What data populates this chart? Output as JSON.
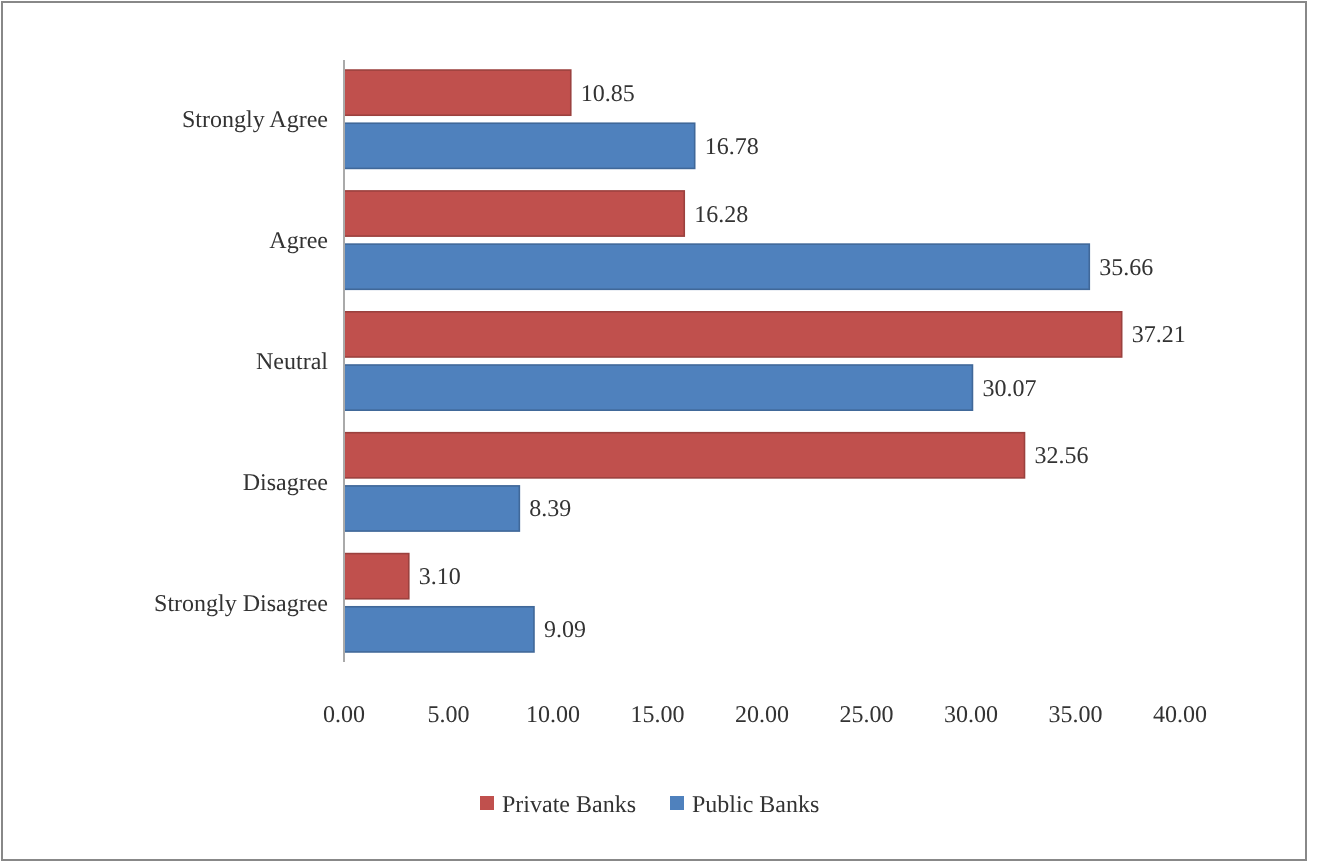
{
  "chart_data": {
    "type": "bar",
    "orientation": "horizontal",
    "categories": [
      "Strongly Agree",
      "Agree",
      "Neutral",
      "Disagree",
      "Strongly Disagree"
    ],
    "series": [
      {
        "name": "Private Banks",
        "color": "#c0504d",
        "values": [
          10.85,
          16.28,
          37.21,
          32.56,
          3.1
        ],
        "value_labels": [
          "10.85",
          "16.28",
          "37.21",
          "32.56",
          "3.10"
        ]
      },
      {
        "name": "Public Banks",
        "color": "#4f81bd",
        "values": [
          16.78,
          35.66,
          30.07,
          8.39,
          9.09
        ],
        "value_labels": [
          "16.78",
          "35.66",
          "30.07",
          "8.39",
          "9.09"
        ]
      }
    ],
    "xlim": [
      0,
      40
    ],
    "xticks": [
      {
        "value": 0,
        "label": "0.00"
      },
      {
        "value": 5,
        "label": "5.00"
      },
      {
        "value": 10,
        "label": "10.00"
      },
      {
        "value": 15,
        "label": "15.00"
      },
      {
        "value": 20,
        "label": "20.00"
      },
      {
        "value": 25,
        "label": "25.00"
      },
      {
        "value": 30,
        "label": "30.00"
      },
      {
        "value": 35,
        "label": "35.00"
      },
      {
        "value": 40,
        "label": "40.00"
      }
    ],
    "legend": "bottom"
  }
}
